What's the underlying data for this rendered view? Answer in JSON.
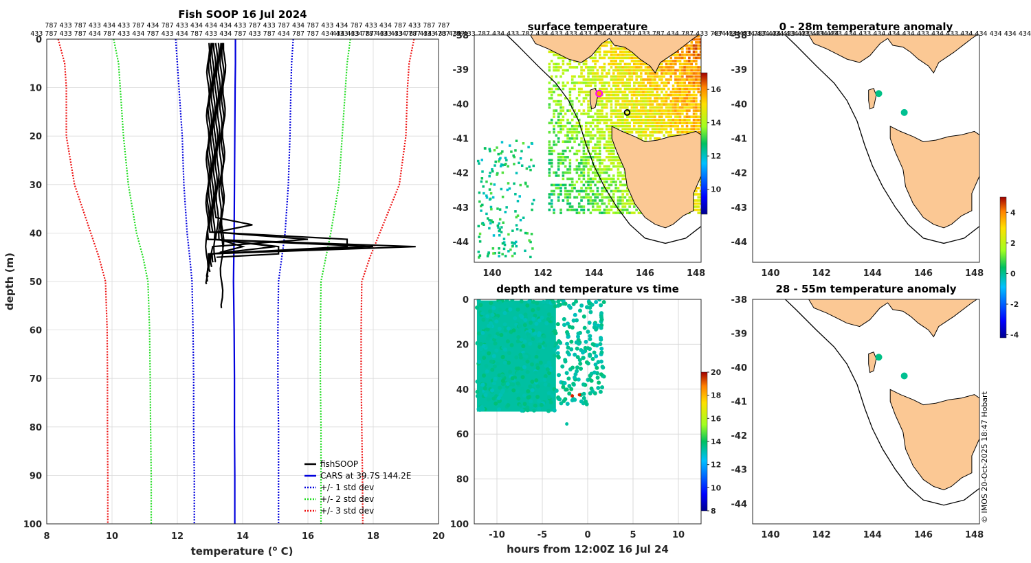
{
  "chart_data": [
    {
      "id": "profile",
      "type": "line",
      "title": "Fish SOOP 16 Jul 2024",
      "xlabel": "temperature (",
      "xlabel_sup": "o",
      "xlabel_end": " C)",
      "ylabel": "depth (m)",
      "xlim": [
        8,
        20
      ],
      "ylim": [
        0,
        100
      ],
      "xticks": [
        8,
        10,
        12,
        14,
        16,
        18,
        20
      ],
      "yticks": [
        0,
        10,
        20,
        30,
        40,
        50,
        60,
        70,
        80,
        90,
        100
      ],
      "id_row1": "787 433 787 433 434 433 787 434 787 433 434 434 434 433 787 433 787 434 787 433 434 787 433 434 787 433 787 787",
      "id_row2": "433 787 433 787 434 787 433 434 787 433 434 787 433 434 787 433 787 434 787 787 434 433 434 787 433 434 787 433 787 787",
      "depth_levels": [
        0,
        5,
        10,
        20,
        30,
        40,
        45,
        50,
        60,
        70,
        80,
        90,
        100
      ],
      "series": [
        {
          "name": "CARS at 39.7S 144.2E",
          "style": "solid",
          "color": "#0000dd",
          "temps": [
            13.78,
            13.78,
            13.77,
            13.76,
            13.75,
            13.74,
            13.73,
            13.72,
            13.74,
            13.75,
            13.75,
            13.76,
            13.76
          ]
        },
        {
          "name": "+/- 1 std dev lower",
          "style": "dotted",
          "color": "#0000dd",
          "temps": [
            11.95,
            12.0,
            12.05,
            12.15,
            12.2,
            12.3,
            12.38,
            12.45,
            12.48,
            12.5,
            12.5,
            12.52,
            12.52
          ]
        },
        {
          "name": "+/- 1 std dev upper",
          "style": "dotted",
          "color": "#0000dd",
          "temps": [
            15.55,
            15.5,
            15.48,
            15.45,
            15.4,
            15.3,
            15.2,
            15.1,
            15.08,
            15.08,
            15.1,
            15.1,
            15.1
          ]
        },
        {
          "name": "+/- 2 std dev lower",
          "style": "dotted",
          "color": "#22dd22",
          "temps": [
            10.05,
            10.2,
            10.25,
            10.35,
            10.5,
            10.75,
            10.95,
            11.1,
            11.15,
            11.17,
            11.18,
            11.2,
            11.2
          ]
        },
        {
          "name": "+/- 2 std dev upper",
          "style": "dotted",
          "color": "#22dd22",
          "temps": [
            17.3,
            17.2,
            17.15,
            17.05,
            16.95,
            16.7,
            16.55,
            16.4,
            16.38,
            16.38,
            16.4,
            16.4,
            16.4
          ]
        },
        {
          "name": "+/- 3 std dev lower",
          "style": "dotted",
          "color": "#ee1111",
          "temps": [
            8.35,
            8.55,
            8.6,
            8.6,
            8.85,
            9.35,
            9.6,
            9.8,
            9.85,
            9.86,
            9.86,
            9.87,
            9.87
          ]
        },
        {
          "name": "+/- 3 std dev upper",
          "style": "dotted",
          "color": "#ee1111",
          "temps": [
            19.25,
            19.1,
            19.05,
            19.0,
            18.8,
            18.2,
            17.9,
            17.65,
            17.63,
            17.63,
            17.65,
            17.67,
            17.68
          ]
        }
      ],
      "fishsoop_profiles": [
        {
          "surface_temp": 12.95,
          "bottom_temp": 12.9,
          "max_depth": 50.5,
          "spike_temp": 0,
          "spike_depth": 0
        },
        {
          "surface_temp": 13.0,
          "bottom_temp": 12.92,
          "max_depth": 50,
          "spike_temp": 19.3,
          "spike_depth": 42.8
        },
        {
          "surface_temp": 13.05,
          "bottom_temp": 12.95,
          "max_depth": 49,
          "spike_temp": 18.0,
          "spike_depth": 42.3
        },
        {
          "surface_temp": 13.1,
          "bottom_temp": 13.0,
          "max_depth": 48,
          "spike_temp": 17.2,
          "spike_depth": 42.0
        },
        {
          "surface_temp": 13.15,
          "bottom_temp": 13.05,
          "max_depth": 47,
          "spike_temp": 16.0,
          "spike_depth": 41.8
        },
        {
          "surface_temp": 13.2,
          "bottom_temp": 13.1,
          "max_depth": 46,
          "spike_temp": 15.0,
          "spike_depth": 42.5
        },
        {
          "surface_temp": 13.25,
          "bottom_temp": 13.15,
          "max_depth": 46,
          "spike_temp": 14.3,
          "spike_depth": 38.0
        },
        {
          "surface_temp": 13.3,
          "bottom_temp": 13.2,
          "max_depth": 45,
          "spike_temp": 15.1,
          "spike_depth": 43.5
        },
        {
          "surface_temp": 13.35,
          "bottom_temp": 13.3,
          "max_depth": 44,
          "spike_temp": 14.0,
          "spike_depth": 43.0
        },
        {
          "surface_temp": 13.4,
          "bottom_temp": 13.35,
          "max_depth": 55.5,
          "spike_temp": 0,
          "spike_depth": 0
        },
        {
          "surface_temp": 13.45,
          "bottom_temp": 13.38,
          "max_depth": 43,
          "spike_temp": 0,
          "spike_depth": 0
        }
      ],
      "legend": [
        "fishSOOP",
        "CARS at 39.7S 144.2E",
        "+/- 1 std dev",
        "+/- 2 std dev",
        "+/- 3 std dev"
      ],
      "legend_position": "bottom-right"
    },
    {
      "id": "sst-map",
      "type": "heatmap",
      "title": "surface temperature",
      "xticks": [
        140,
        142,
        144,
        146,
        148
      ],
      "yticks": [
        -38,
        -39,
        -40,
        -41,
        -42,
        -43,
        -44
      ],
      "xlim": [
        139.3,
        148.2
      ],
      "ylim": [
        -44.6,
        -38
      ],
      "id_row": "434 433 787 434 433 787 434 433 434 433 787 434 433 787 434 433 433 433 434 433 787 433 787 434 787 433 787 434 433 787 434 433 433 433 434",
      "colorbar_label_ticks": [
        10,
        12,
        14,
        16
      ],
      "colorbar_range": [
        8.5,
        17
      ],
      "markers": [
        {
          "label": "CARS location",
          "lon": 144.2,
          "lat": -39.7
        },
        {
          "label": "fishSOOP location",
          "lon": 145.3,
          "lat": -40.25
        }
      ]
    },
    {
      "id": "depth-time",
      "type": "scatter",
      "title": "depth and temperature vs time",
      "xlabel": "hours from 12:00Z 16 Jul 24",
      "xlim": [
        -12.5,
        12.5
      ],
      "ylim": [
        0,
        100
      ],
      "xticks": [
        -10,
        -5,
        0,
        5,
        10
      ],
      "yticks": [
        0,
        20,
        40,
        60,
        80,
        100
      ],
      "colorbar_ticks": [
        8,
        10,
        12,
        14,
        16,
        18,
        20
      ],
      "colorbar_range": [
        8,
        20
      ],
      "summary": {
        "time_start_h": -12.2,
        "time_end_h": 1.8,
        "depth_range_m": [
          0,
          55
        ],
        "typical_temp": 13.3
      }
    },
    {
      "id": "anom-0-28",
      "type": "heatmap",
      "title": "0 - 28m temperature anomaly",
      "xticks": [
        140,
        142,
        144,
        146,
        148
      ],
      "yticks": [
        -38,
        -39,
        -40,
        -41,
        -42,
        -43,
        -44
      ],
      "xlim": [
        139.3,
        148.2
      ],
      "ylim": [
        -44.6,
        -38
      ],
      "id_row": "434 434 434 434 434 434 433 434 433 434 433 434 434 434 433 434 433 434 434 434 434 434 434 434",
      "points": [
        {
          "lon": 144.25,
          "lat": -39.7,
          "anomaly": 0.1
        },
        {
          "lon": 145.25,
          "lat": -40.25,
          "anomaly": 0.0
        }
      ]
    },
    {
      "id": "anom-28-55",
      "type": "heatmap",
      "title": "28 - 55m temperature anomaly",
      "xticks": [
        140,
        142,
        144,
        146,
        148
      ],
      "yticks": [
        -38,
        -39,
        -40,
        -41,
        -42,
        -43,
        -44
      ],
      "xlim": [
        139.3,
        148.2
      ],
      "ylim": [
        -44.6,
        -38
      ],
      "points": [
        {
          "lon": 144.25,
          "lat": -39.7,
          "anomaly": 0.1
        },
        {
          "lon": 145.25,
          "lat": -40.25,
          "anomaly": 0.0
        }
      ],
      "colorbar_ticks": [
        -4,
        -2,
        0,
        2,
        4
      ],
      "colorbar_range": [
        -4.2,
        5
      ]
    }
  ],
  "credit": "© IMOS 20-Oct-2025 18:47 Hobart",
  "colors": {
    "land": "#fbc894",
    "coast": "#000000",
    "axis": "#262626",
    "grid": "#d9d9d9"
  }
}
